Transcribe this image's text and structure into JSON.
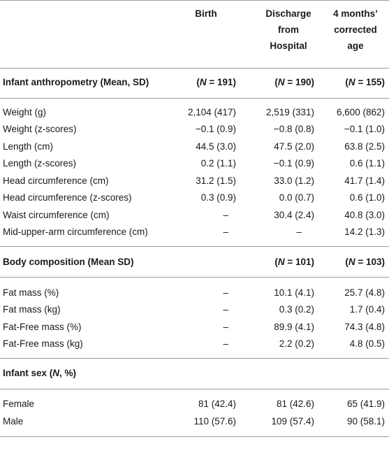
{
  "header": {
    "birth": [
      "Birth"
    ],
    "discharge": [
      "Discharge",
      "from",
      "Hospital"
    ],
    "four_months": [
      "4 months’",
      "corrected",
      "age"
    ]
  },
  "sections": [
    {
      "title": "Infant anthropometry (Mean, SD)",
      "n": [
        "(N = 191)",
        "(N = 190)",
        "(N = 155)"
      ],
      "rows": [
        {
          "label": "Weight (g)",
          "values": [
            "2,104 (417)",
            "2,519 (331)",
            "6,600 (862)"
          ]
        },
        {
          "label": "Weight (z-scores)",
          "values": [
            "−0.1 (0.9)",
            "−0.8 (0.8)",
            "−0.1 (1.0)"
          ]
        },
        {
          "label": "Length (cm)",
          "values": [
            "44.5 (3.0)",
            "47.5 (2.0)",
            "63.8 (2.5)"
          ]
        },
        {
          "label": "Length (z-scores)",
          "values": [
            "0.2 (1.1)",
            "−0.1 (0.9)",
            "0.6 (1.1)"
          ]
        },
        {
          "label": "Head circumference (cm)",
          "values": [
            "31.2 (1.5)",
            "33.0 (1.2)",
            "41.7 (1.4)"
          ]
        },
        {
          "label": "Head circumference (z-scores)",
          "values": [
            "0.3 (0.9)",
            "0.0 (0.7)",
            "0.6 (1.0)"
          ]
        },
        {
          "label": "Waist circumference (cm)",
          "values": [
            "–",
            "30.4 (2.4)",
            "40.8 (3.0)"
          ]
        },
        {
          "label": "Mid-upper-arm circumference (cm)",
          "values": [
            "–",
            "–",
            "14.2 (1.3)"
          ]
        }
      ]
    },
    {
      "title": "Body composition (Mean SD)",
      "n": [
        "",
        "(N = 101)",
        "(N = 103)"
      ],
      "rows": [
        {
          "label": "Fat mass (%)",
          "values": [
            "–",
            "10.1 (4.1)",
            "25.7 (4.8)"
          ]
        },
        {
          "label": "Fat mass (kg)",
          "values": [
            "–",
            "0.3 (0.2)",
            "1.7 (0.4)"
          ]
        },
        {
          "label": "Fat-Free mass (%)",
          "values": [
            "–",
            "89.9 (4.1)",
            "74.3 (4.8)"
          ]
        },
        {
          "label": "Fat-Free mass (kg)",
          "values": [
            "–",
            "2.2 (0.2)",
            "4.8 (0.5)"
          ]
        }
      ]
    },
    {
      "title": "Infant sex (N, %)",
      "n": [
        "",
        "",
        ""
      ],
      "rows": [
        {
          "label": "Female",
          "values": [
            "81 (42.4)",
            "81 (42.6)",
            "65 (41.9)"
          ]
        },
        {
          "label": "Male",
          "values": [
            "110 (57.6)",
            "109 (57.4)",
            "90 (58.1)"
          ]
        }
      ]
    }
  ]
}
